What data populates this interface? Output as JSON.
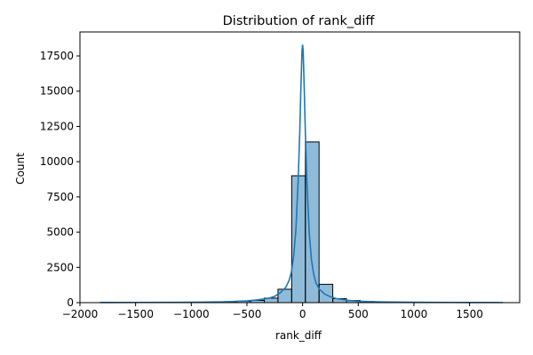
{
  "chart_data": {
    "type": "bar",
    "title": "Distribution of rank_diff",
    "xlabel": "rank_diff",
    "ylabel": "Count",
    "xlim": [
      -2000,
      1950
    ],
    "ylim": [
      0,
      19200
    ],
    "xticks": [
      -2000,
      -1500,
      -1000,
      -500,
      0,
      500,
      1000,
      1500
    ],
    "xtick_labels": [
      "−2000",
      "−1500",
      "−1000",
      "−500",
      "0",
      "500",
      "1000",
      "1500"
    ],
    "yticks": [
      0,
      2500,
      5000,
      7500,
      10000,
      12500,
      15000,
      17500
    ],
    "ytick_labels": [
      "0",
      "2500",
      "5000",
      "7500",
      "10000",
      "12500",
      "15000",
      "17500"
    ],
    "grid": false,
    "bar_color": "#1f77b4",
    "bar_alpha": 0.5,
    "bin_edges": [
      -1820,
      -1697,
      -1574,
      -1451,
      -1328,
      -1205,
      -1082,
      -959,
      -836,
      -713,
      -590,
      -467,
      -344,
      -221,
      -98,
      25,
      148,
      271,
      394,
      517,
      640,
      763,
      886,
      1009,
      1132,
      1255,
      1378,
      1501,
      1624,
      1747
    ],
    "bin_counts": [
      5,
      5,
      5,
      8,
      10,
      15,
      20,
      30,
      45,
      70,
      100,
      160,
      320,
      950,
      9000,
      11400,
      1300,
      280,
      150,
      80,
      45,
      25,
      15,
      10,
      8,
      5,
      5,
      5,
      5
    ],
    "kde": {
      "x": [
        -1820,
        -1500,
        -1000,
        -700,
        -500,
        -400,
        -300,
        -250,
        -200,
        -150,
        -120,
        -100,
        -80,
        -60,
        -40,
        -25,
        -15,
        -5,
        0,
        5,
        15,
        25,
        40,
        60,
        80,
        100,
        120,
        150,
        200,
        250,
        300,
        400,
        500,
        700,
        1000,
        1500,
        1800
      ],
      "y": [
        10,
        15,
        30,
        60,
        120,
        200,
        320,
        450,
        700,
        1100,
        1600,
        2200,
        3300,
        5200,
        8600,
        12200,
        15300,
        17900,
        18300,
        17900,
        15100,
        12000,
        8300,
        4900,
        3000,
        2000,
        1400,
        950,
        600,
        420,
        290,
        170,
        100,
        50,
        25,
        12,
        8
      ]
    }
  }
}
